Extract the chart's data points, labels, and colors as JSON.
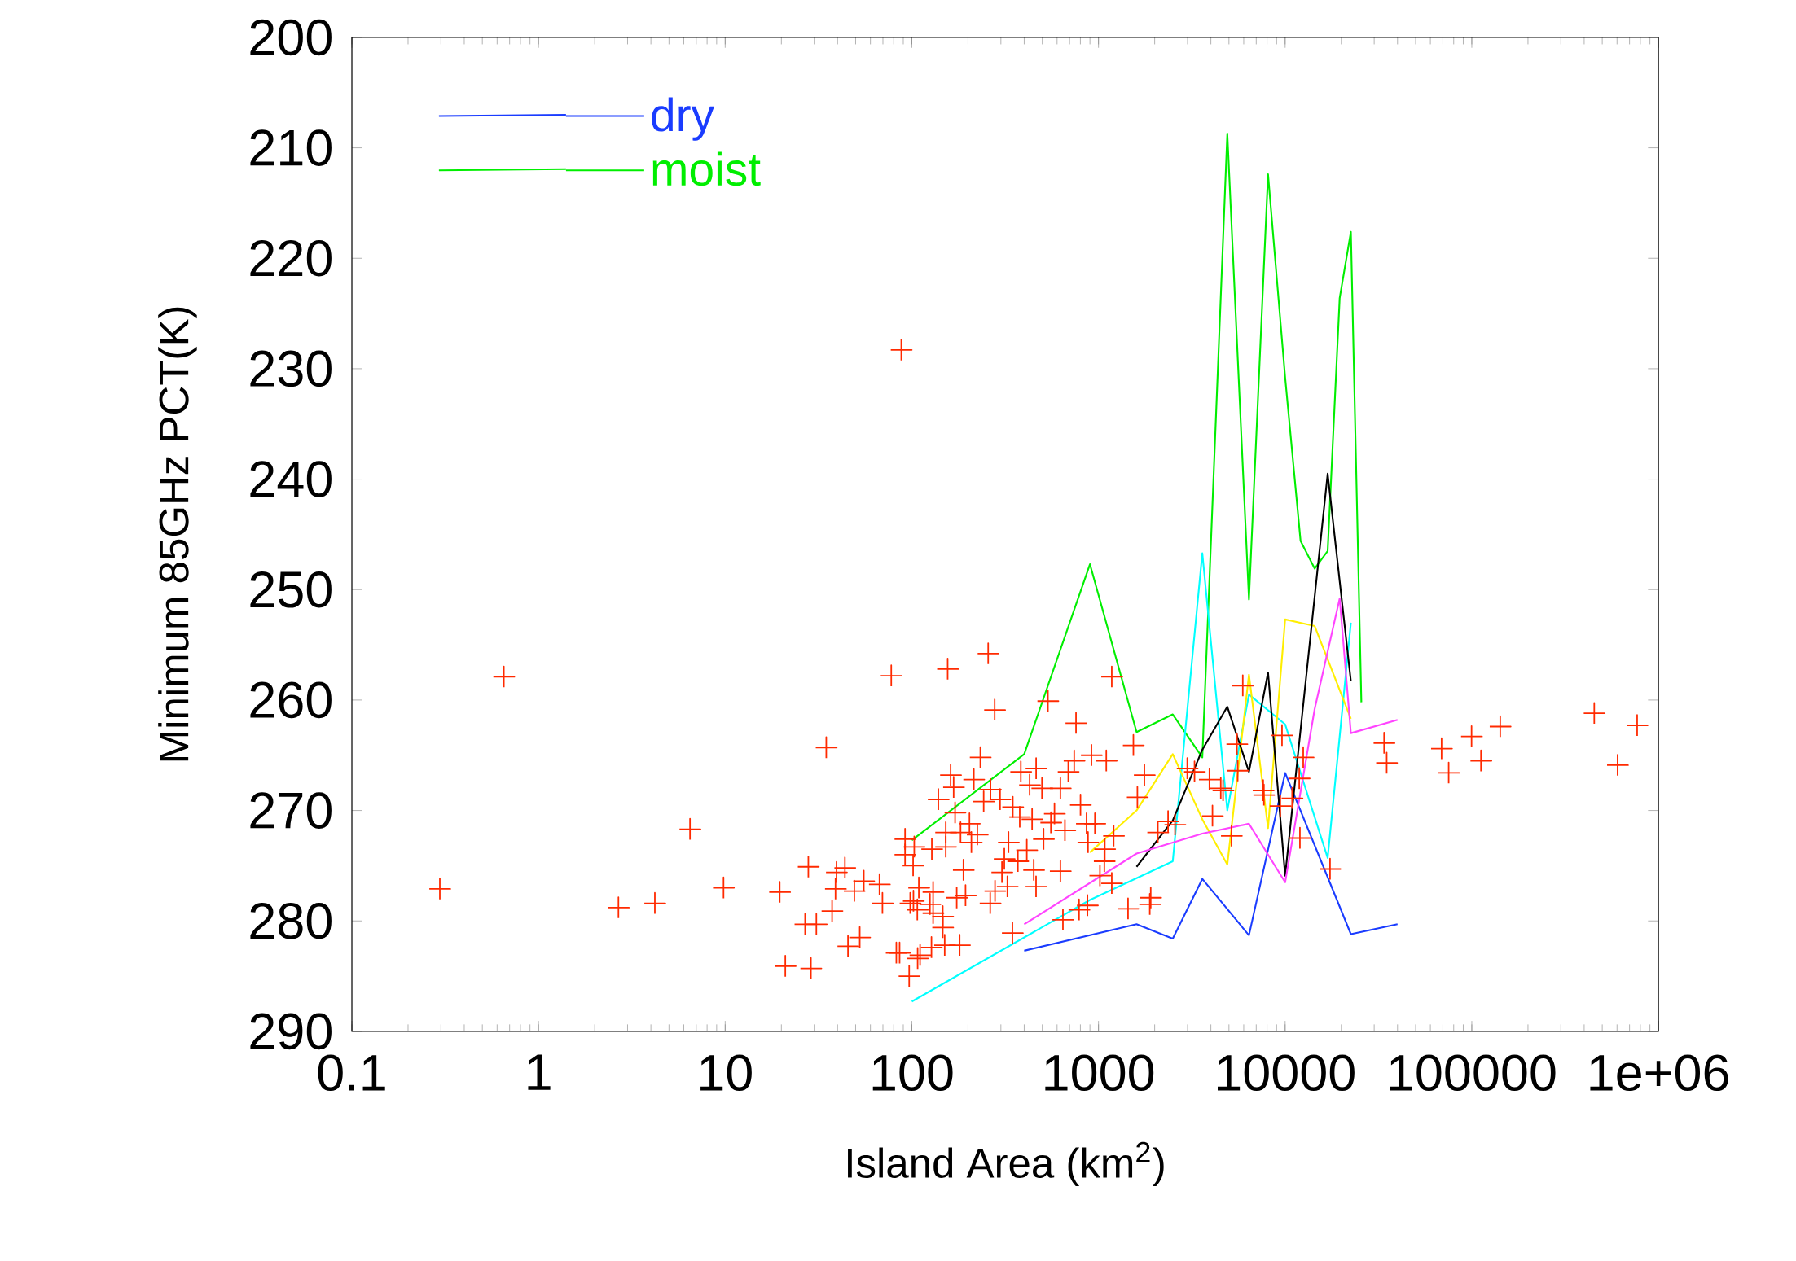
{
  "chart_data": {
    "type": "line",
    "xlabel": "Island Area (km$^{2}$)",
    "ylabel": "Minimum 85GHz PCT(K)",
    "log": "x",
    "grid": false,
    "legend": "top left",
    "xlim": [
      0.1,
      1000000
    ],
    "xticks": [
      0.1,
      1,
      10,
      100,
      1000,
      10000,
      100000,
      {
        "value": 1000000,
        "label": "1e+06"
      }
    ],
    "ylim": [
      290,
      200
    ],
    "yticks": [
      200,
      210,
      220,
      230,
      240,
      250,
      260,
      270,
      280,
      290
    ],
    "series": [
      {
        "name": "dry",
        "color": "#1a3cff",
        "x": [
          400,
          1600,
          2500,
          3600,
          6400,
          10000,
          22500,
          40000
        ],
        "values": [
          282.7,
          280.3,
          281.6,
          276.2,
          281.3,
          266.6,
          281.2,
          280.3
        ]
      },
      {
        "name": "moist",
        "color": "#00ee00",
        "x": [
          100,
          400,
          900,
          1600,
          2500,
          3600,
          4900,
          6400,
          8100,
          10000,
          12100,
          14400,
          16900,
          19600,
          22500,
          25600
        ],
        "values": [
          272.7,
          264.9,
          247.7,
          262.9,
          261.3,
          265.2,
          208.7,
          250.9,
          212.4,
          230.8,
          245.6,
          248.1,
          246.5,
          223.6,
          217.6,
          260.2
        ]
      },
      {
        "color": "#ff2a00",
        "type": "scatter",
        "marker": "cross",
        "x": [
          0.296,
          0.652,
          2.68,
          4.2,
          6.48,
          9.8,
          19.6,
          21,
          26.8,
          27.9,
          28.8,
          30.8,
          34.8,
          37.4,
          39,
          39.5,
          43.8,
          45.5,
          49.2,
          52.6,
          55.3,
          67.1,
          69.6,
          77.6,
          82.6,
          86,
          87.8,
          92,
          92,
          96.8,
          98,
          101.6,
          102,
          103,
          107,
          107.4,
          109,
          110.7,
          125,
          127.4,
          128,
          130,
          130,
          138.7,
          146.5,
          146.5,
          150,
          152,
          152,
          155.6,
          161.4,
          167.5,
          170.5,
          174,
          180.4,
          182.4,
          189,
          194,
          203.6,
          208.5,
          214.9,
          224.4,
          232.8,
          242.6,
          256.5,
          263,
          264,
          277.9,
          279,
          297,
          304,
          313,
          325,
          329.6,
          346,
          347.6,
          370,
          378.6,
          383.7,
          413,
          427.8,
          441,
          450,
          463,
          463.5,
          498,
          508,
          536,
          556,
          581,
          625,
          625,
          645,
          661,
          689,
          741,
          758,
          787,
          801,
          863,
          873,
          879,
          917,
          957,
          1018,
          1075,
          1081,
          1101,
          1178,
          1178,
          1206,
          1440,
          1538,
          1616,
          1762,
          1883,
          1905,
          2080,
          2360,
          2570,
          2990,
          3270,
          3930,
          4080,
          4520,
          4650,
          5160,
          5520,
          5570,
          5930,
          7630,
          7700,
          9420,
          9620,
          10900,
          11900,
          12000,
          12500,
          17400,
          33900,
          35000,
          68900,
          75200,
          99700,
          112000,
          142000,
          453000,
          604000,
          769000
        ],
        "values": [
          277.1,
          257.9,
          278.8,
          278.4,
          271.7,
          277.0,
          277.4,
          284.1,
          280.3,
          275.1,
          284.3,
          280.3,
          264.3,
          279.1,
          277.1,
          275.6,
          275.2,
          282.3,
          277.3,
          281.5,
          276.4,
          276.7,
          278.4,
          257.8,
          282.9,
          282.9,
          228.3,
          272.6,
          274.0,
          285.0,
          278.4,
          275.0,
          278.2,
          273.3,
          279.0,
          283.4,
          277.0,
          283.1,
          278.5,
          282.4,
          273.5,
          277.4,
          279.3,
          269.0,
          279.6,
          280.6,
          282.2,
          272.0,
          273.3,
          257.2,
          266.8,
          267.9,
          270.2,
          277.9,
          282.2,
          272.0,
          275.4,
          277.7,
          271.2,
          272.9,
          267.2,
          272.2,
          265.2,
          269.2,
          255.8,
          278.4,
          268.1,
          260.9,
          277.3,
          269.0,
          275.6,
          274.4,
          276.9,
          272.9,
          281.1,
          269.7,
          274.6,
          270.6,
          266.5,
          273.6,
          267.7,
          270.8,
          275.4,
          276.9,
          266.2,
          268.0,
          272.6,
          260.1,
          271.1,
          270.3,
          268.0,
          275.5,
          279.9,
          271.8,
          266.5,
          265.5,
          262.1,
          279.0,
          269.5,
          271.2,
          278.6,
          272.9,
          265.0,
          271.2,
          275.9,
          274.6,
          273.5,
          265.5,
          257.9,
          276.6,
          272.3,
          278.9,
          264.1,
          268.8,
          266.8,
          278.5,
          277.9,
          272.0,
          271.0,
          271.3,
          266.2,
          266.5,
          267.2,
          270.5,
          268.0,
          268.2,
          272.3,
          264.0,
          266.4,
          258.7,
          268.2,
          268.6,
          269.6,
          263.2,
          268.9,
          267.1,
          272.5,
          265.2,
          275.3,
          263.9,
          265.7,
          264.4,
          266.6,
          263.3,
          265.5,
          262.4,
          261.2,
          265.9,
          262.3
        ]
      },
      {
        "color": "#00ffff",
        "x": [
          100,
          900,
          2500,
          3600,
          4900,
          6400,
          10000,
          16900,
          22500
        ],
        "values": [
          287.3,
          278.1,
          274.6,
          246.7,
          270.0,
          259.5,
          262.2,
          274.3,
          253.0
        ]
      },
      {
        "color": "#ffee00",
        "x": [
          900,
          1600,
          2500,
          3600,
          4900,
          6400,
          8100,
          10000,
          14400,
          22500
        ],
        "values": [
          273.8,
          270.0,
          264.9,
          270.8,
          274.9,
          257.7,
          271.6,
          252.7,
          253.3,
          261.7
        ]
      },
      {
        "color": "#000000",
        "x": [
          1600,
          2500,
          3600,
          4900,
          6400,
          8100,
          10000,
          16900,
          22500
        ],
        "values": [
          275.1,
          270.9,
          264.5,
          260.6,
          266.5,
          257.5,
          275.9,
          239.5,
          258.3
        ]
      },
      {
        "color": "#ff44ff",
        "x": [
          400,
          1600,
          3600,
          6400,
          10000,
          14400,
          19600,
          22500,
          40000
        ],
        "values": [
          280.3,
          273.9,
          272.1,
          271.2,
          276.5,
          260.8,
          250.8,
          263.0,
          261.8
        ]
      }
    ]
  }
}
